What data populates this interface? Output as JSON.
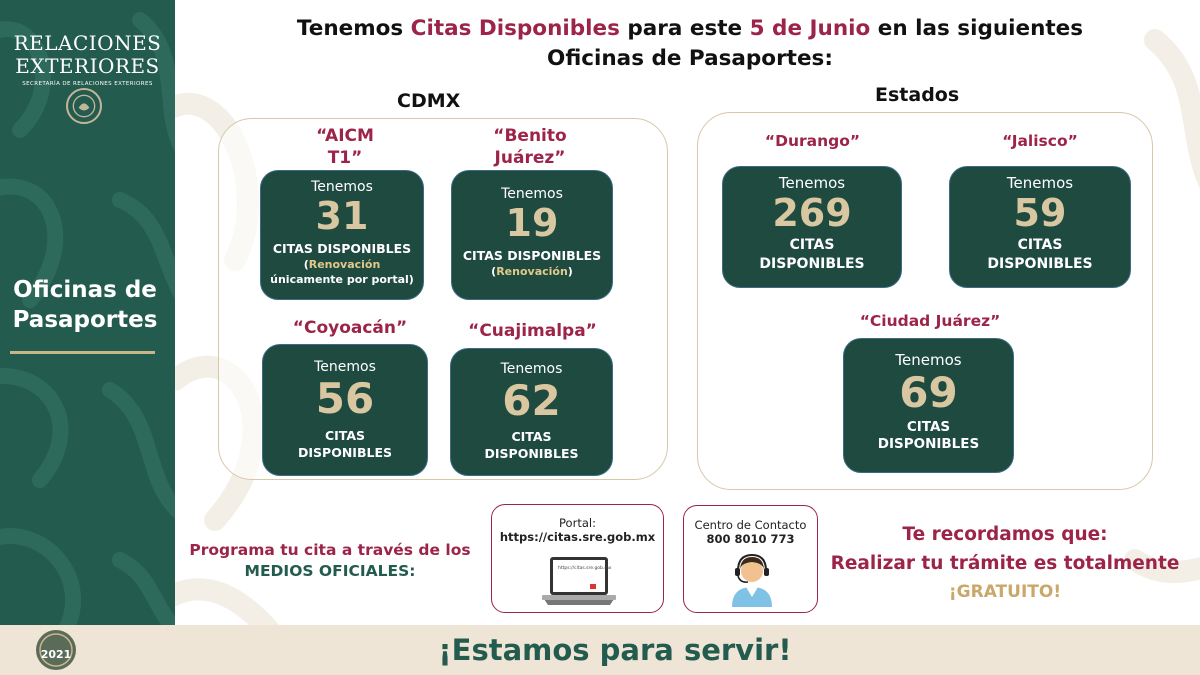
{
  "sidebar": {
    "brand_line1": "RELACIONES",
    "brand_line2": "EXTERIORES",
    "brand_sub": "SECRETARÍA DE RELACIONES EXTERIORES",
    "title_line1": "Oficinas de",
    "title_line2": "Pasaportes"
  },
  "headline": {
    "part1": "Tenemos ",
    "highlight1": "Citas Disponibles",
    "part2": " para este ",
    "highlight2": "5 de Junio",
    "part3": " en las siguientes",
    "line2": "Oficinas de Pasaportes:"
  },
  "cdmx": {
    "label": "CDMX",
    "offices": [
      {
        "name_line1": "“AICM",
        "name_line2": "T1”",
        "tenemos": "Tenemos",
        "count": "31",
        "citas": "CITAS DISPONIBLES",
        "note_open": "(",
        "note_gold": "Renovación",
        "note_line2": "únicamente por portal)"
      },
      {
        "name_line1": "“Benito",
        "name_line2": "Juárez”",
        "tenemos": "Tenemos",
        "count": "19",
        "citas": "CITAS DISPONIBLES",
        "note_open": "(",
        "note_gold": "Renovación",
        "note_close": ")"
      },
      {
        "name": "“Coyoacán”",
        "tenemos": "Tenemos",
        "count": "56",
        "citas_line1": "CITAS",
        "citas_line2": "DISPONIBLES"
      },
      {
        "name": "“Cuajimalpa”",
        "tenemos": "Tenemos",
        "count": "62",
        "citas_line1": "CITAS",
        "citas_line2": "DISPONIBLES"
      }
    ]
  },
  "estados": {
    "label": "Estados",
    "offices": [
      {
        "name": "“Durango”",
        "tenemos": "Tenemos",
        "count": "269",
        "citas_line1": "CITAS",
        "citas_line2": "DISPONIBLES"
      },
      {
        "name": "“Jalisco”",
        "tenemos": "Tenemos",
        "count": "59",
        "citas_line1": "CITAS",
        "citas_line2": "DISPONIBLES"
      },
      {
        "name": "“Ciudad Juárez”",
        "tenemos": "Tenemos",
        "count": "69",
        "citas_line1": "CITAS",
        "citas_line2": "DISPONIBLES"
      }
    ]
  },
  "bottom": {
    "programa_line1": "Programa tu cita a través de los",
    "programa_line2": "MEDIOS OFICIALES:",
    "portal_label": "Portal:",
    "portal_url": "https://citas.sre.gob.mx",
    "laptop_screen_text": "https://citas.sre.gob.mx",
    "contact_label": "Centro de Contacto",
    "contact_phone": "800 8010 773",
    "remind_line1": "Te recordamos que:",
    "remind_line2": "Realizar tu trámite es totalmente",
    "remind_line3": "¡GRATUITO!"
  },
  "footer": {
    "text": "¡Estamos para servir!",
    "logo_year": "2021"
  },
  "colors": {
    "green": "#235b4e",
    "card_green": "#1f4a40",
    "maroon": "#9d2449",
    "gold": "#d8c7a0",
    "footer_bg": "#efe5d6"
  }
}
